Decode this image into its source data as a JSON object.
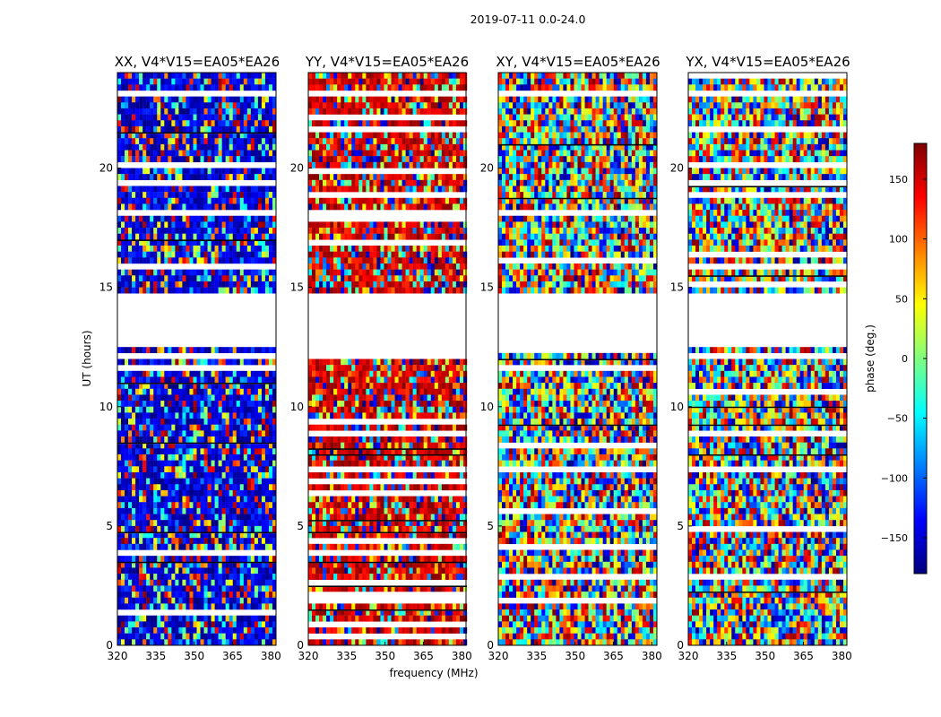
{
  "chart_data": {
    "type": "heatmap",
    "suptitle": "2019-07-11 0.0-24.0",
    "xlabel": "frequency (MHz)",
    "ylabel": "UT (hours)",
    "xlim": [
      320,
      382
    ],
    "ylim": [
      0,
      24
    ],
    "xticks": [
      "320",
      "335",
      "350",
      "365",
      "380"
    ],
    "yticks": [
      "0",
      "5",
      "10",
      "15",
      "20"
    ],
    "colorbar": {
      "label": "phase (deg.)",
      "range": [
        -180,
        180
      ],
      "ticks": [
        "−150",
        "−100",
        "−50",
        "0",
        "50",
        "100",
        "150"
      ],
      "tick_values": [
        -150,
        -100,
        -50,
        0,
        50,
        100,
        150
      ],
      "colormap": "jet"
    },
    "data_gaps_hours": [
      [
        12.4,
        14.8
      ],
      [
        15.4,
        15.6
      ],
      [
        20.4,
        20.5
      ],
      [
        17.2,
        17.3
      ],
      [
        23.1,
        23.3
      ]
    ],
    "panels": [
      {
        "title": "XX, V4*V15=EA05*EA26",
        "dominant_phase_deg": -150,
        "coherent": true
      },
      {
        "title": "YY, V4*V15=EA05*EA26",
        "dominant_phase_deg": 150,
        "coherent": true
      },
      {
        "title": "XY, V4*V15=EA05*EA26",
        "dominant_phase_deg": null,
        "coherent": false
      },
      {
        "title": "YX, V4*V15=EA05*EA26",
        "dominant_phase_deg": null,
        "coherent": false
      }
    ]
  }
}
